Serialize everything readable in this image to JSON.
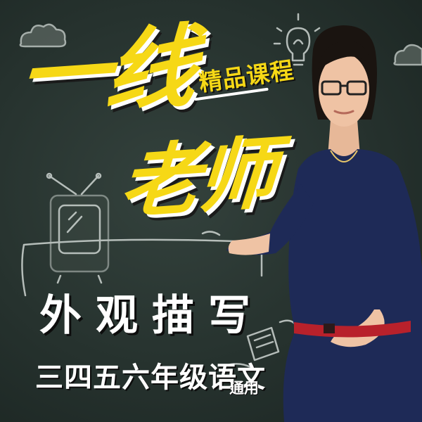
{
  "title": {
    "line1": "一线",
    "line2": "老师",
    "badge": "精品课程"
  },
  "topic": "外观描写",
  "grade_label": "三四五六年级语文",
  "scope_tag": "通用",
  "colors": {
    "chalkboard": "#2b3733",
    "title_yellow": "#f6d816",
    "dress_navy": "#1e2a57",
    "belt_red": "#b8212b"
  },
  "icons": [
    "cloud-icon",
    "tv-icon",
    "lightbulb-icon",
    "paper-icon"
  ]
}
